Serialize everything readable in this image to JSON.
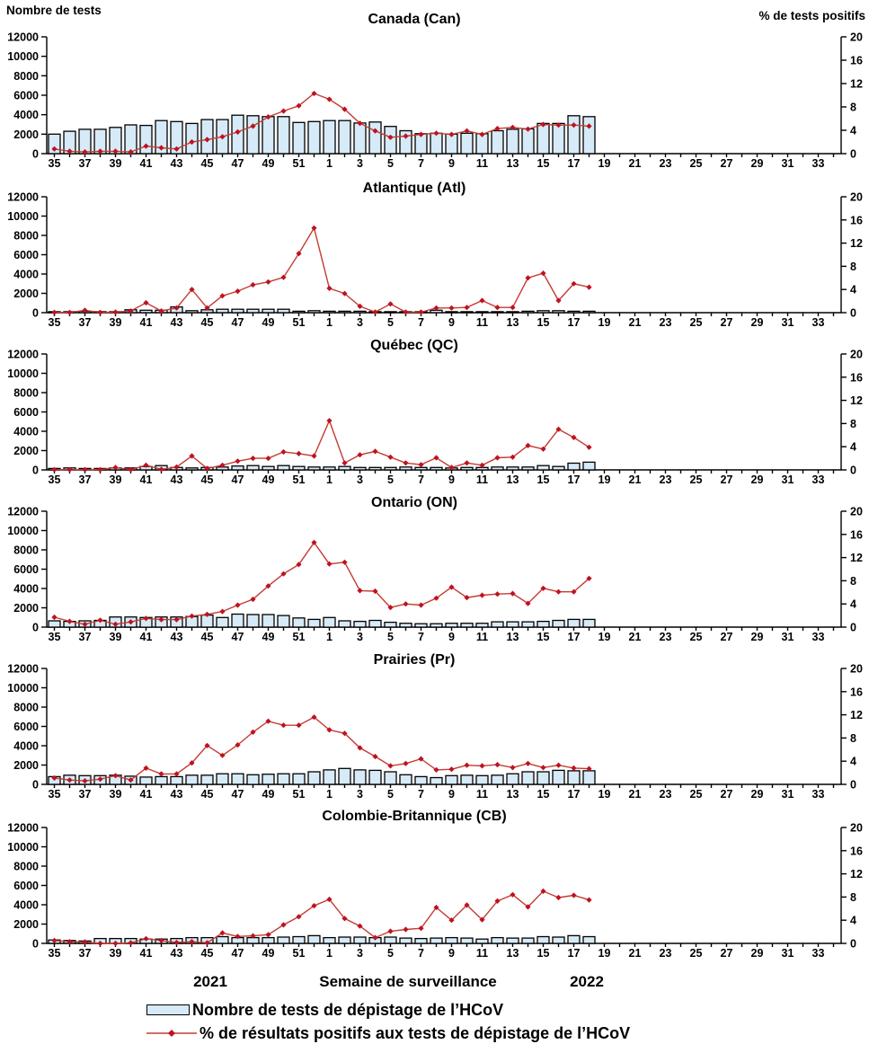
{
  "axes": {
    "left_title": "Nombre de tests",
    "right_title": "% de tests positifs",
    "left_ticks": [
      0,
      2000,
      4000,
      6000,
      8000,
      10000,
      12000
    ],
    "right_ticks": [
      0,
      4,
      8,
      12,
      16,
      20
    ],
    "x_tick_labels": [
      35,
      37,
      39,
      41,
      43,
      45,
      47,
      49,
      51,
      1,
      3,
      5,
      7,
      9,
      11,
      13,
      15,
      17,
      19,
      21,
      23,
      25,
      27,
      29,
      31,
      33
    ]
  },
  "x_axis": {
    "label": "Semaine de surveillance",
    "year_left": "2021",
    "year_right": "2022"
  },
  "legend": {
    "items": [
      {
        "swatch": "bar",
        "label": "Nombre de tests de dépistage de l’HCoV"
      },
      {
        "swatch": "line-diamond",
        "label": "% de résultats positifs aux tests de dépistage de l’HCoV"
      }
    ]
  },
  "colors": {
    "bar_fill": "#D6EAF8",
    "bar_stroke": "#000000",
    "line": "#C53B33",
    "marker": "#BE1220"
  },
  "chart_data": [
    {
      "type": "combo-bar-line",
      "title": "Canada (Can)",
      "xlabel": "Semaine de surveillance",
      "weeks": [
        35,
        36,
        37,
        38,
        39,
        40,
        41,
        42,
        43,
        44,
        45,
        46,
        47,
        48,
        49,
        50,
        51,
        52,
        1,
        2,
        3,
        4,
        5,
        6,
        7,
        8,
        9,
        10,
        11,
        12,
        13,
        14,
        15,
        16,
        17,
        18
      ],
      "ylim_left": [
        0,
        12000
      ],
      "ylim_right": [
        0,
        20
      ],
      "series": [
        {
          "name": "Nombre de tests",
          "type": "bar",
          "axis": "left",
          "values": [
            2000,
            2300,
            2500,
            2500,
            2700,
            2950,
            2900,
            3400,
            3300,
            3100,
            3500,
            3500,
            3950,
            3900,
            3800,
            3800,
            3200,
            3300,
            3400,
            3400,
            3150,
            3250,
            2800,
            2350,
            2050,
            2100,
            2000,
            2100,
            2050,
            2350,
            2500,
            2550,
            3100,
            3100,
            3900,
            3800
          ]
        },
        {
          "name": "% de tests positifs",
          "type": "line",
          "axis": "right",
          "values": [
            0.8,
            0.4,
            0.3,
            0.4,
            0.4,
            0.3,
            1.3,
            1.0,
            0.8,
            2.0,
            2.4,
            2.9,
            3.7,
            4.7,
            6.3,
            7.3,
            8.2,
            10.3,
            9.3,
            7.6,
            5.2,
            3.9,
            2.8,
            3.0,
            3.3,
            3.5,
            3.3,
            3.9,
            3.3,
            4.3,
            4.5,
            4.2,
            5.0,
            4.9,
            4.9,
            4.7
          ]
        }
      ]
    },
    {
      "type": "combo-bar-line",
      "title": "Atlantique (Atl)",
      "xlabel": "Semaine de surveillance",
      "weeks": [
        35,
        36,
        37,
        38,
        39,
        40,
        41,
        42,
        43,
        44,
        45,
        46,
        47,
        48,
        49,
        50,
        51,
        52,
        1,
        2,
        3,
        4,
        5,
        6,
        7,
        8,
        9,
        10,
        11,
        12,
        13,
        14,
        15,
        16,
        17,
        18
      ],
      "ylim_left": [
        0,
        12000
      ],
      "ylim_right": [
        0,
        20
      ],
      "series": [
        {
          "name": "Nombre de tests",
          "type": "bar",
          "axis": "left",
          "values": [
            100,
            100,
            150,
            100,
            100,
            300,
            250,
            250,
            600,
            200,
            300,
            350,
            350,
            350,
            350,
            350,
            150,
            200,
            150,
            150,
            150,
            100,
            100,
            100,
            100,
            250,
            100,
            100,
            100,
            100,
            100,
            150,
            200,
            200,
            150,
            150
          ]
        },
        {
          "name": "% de tests positifs",
          "type": "line",
          "axis": "right",
          "values": [
            0.05,
            0.05,
            0.4,
            0.05,
            0.1,
            0.3,
            1.7,
            0.3,
            0.8,
            4.0,
            0.8,
            2.9,
            3.7,
            4.8,
            5.3,
            6.1,
            10.2,
            14.6,
            4.2,
            3.3,
            1.1,
            0.1,
            1.5,
            0.1,
            0.1,
            0.8,
            0.8,
            0.9,
            2.1,
            0.9,
            0.9,
            6.0,
            6.8,
            2.1,
            5.0,
            4.4
          ]
        }
      ]
    },
    {
      "type": "combo-bar-line",
      "title": "Québec (QC)",
      "xlabel": "Semaine de surveillance",
      "weeks": [
        35,
        36,
        37,
        38,
        39,
        40,
        41,
        42,
        43,
        44,
        45,
        46,
        47,
        48,
        49,
        50,
        51,
        52,
        1,
        2,
        3,
        4,
        5,
        6,
        7,
        8,
        9,
        10,
        11,
        12,
        13,
        14,
        15,
        16,
        17,
        18
      ],
      "ylim_left": [
        0,
        12000
      ],
      "ylim_right": [
        0,
        20
      ],
      "series": [
        {
          "name": "Nombre de tests",
          "type": "bar",
          "axis": "left",
          "values": [
            150,
            200,
            150,
            150,
            200,
            200,
            350,
            450,
            250,
            200,
            250,
            300,
            400,
            450,
            350,
            450,
            350,
            300,
            300,
            350,
            250,
            250,
            250,
            300,
            250,
            250,
            200,
            250,
            250,
            300,
            300,
            300,
            450,
            350,
            700,
            800
          ]
        },
        {
          "name": "% de tests positifs",
          "type": "line",
          "axis": "right",
          "values": [
            0.05,
            0.05,
            0.05,
            0.05,
            0.4,
            0.05,
            0.8,
            0.1,
            0.5,
            2.4,
            0.25,
            0.8,
            1.5,
            2.0,
            2.0,
            3.1,
            2.8,
            2.4,
            8.5,
            1.2,
            2.6,
            3.2,
            2.2,
            1.2,
            0.9,
            2.1,
            0.4,
            1.2,
            0.8,
            2.1,
            2.2,
            4.2,
            3.6,
            7.0,
            5.6,
            3.9
          ]
        }
      ]
    },
    {
      "type": "combo-bar-line",
      "title": "Ontario (ON)",
      "xlabel": "Semaine de surveillance",
      "weeks": [
        35,
        36,
        37,
        38,
        39,
        40,
        41,
        42,
        43,
        44,
        45,
        46,
        47,
        48,
        49,
        50,
        51,
        52,
        1,
        2,
        3,
        4,
        5,
        6,
        7,
        8,
        9,
        10,
        11,
        12,
        13,
        14,
        15,
        16,
        17,
        18
      ],
      "ylim_left": [
        0,
        12000
      ],
      "ylim_right": [
        0,
        20
      ],
      "series": [
        {
          "name": "Nombre de tests",
          "type": "bar",
          "axis": "left",
          "values": [
            650,
            600,
            650,
            700,
            1050,
            1050,
            1000,
            1050,
            1050,
            1100,
            1250,
            1000,
            1350,
            1300,
            1300,
            1200,
            950,
            800,
            1000,
            650,
            600,
            700,
            500,
            400,
            350,
            350,
            400,
            400,
            400,
            550,
            550,
            550,
            600,
            700,
            800,
            800
          ]
        },
        {
          "name": "% de tests positifs",
          "type": "line",
          "axis": "right",
          "values": [
            1.7,
            1.0,
            0.5,
            1.2,
            0.5,
            0.9,
            1.5,
            1.3,
            1.3,
            1.9,
            2.2,
            2.7,
            3.8,
            4.8,
            7.1,
            9.2,
            10.8,
            14.6,
            10.9,
            11.2,
            6.3,
            6.2,
            3.4,
            4.0,
            3.8,
            5.0,
            6.9,
            5.1,
            5.5,
            5.7,
            5.8,
            4.1,
            6.7,
            6.1,
            6.1,
            8.4
          ]
        }
      ]
    },
    {
      "type": "combo-bar-line",
      "title": "Prairies (Pr)",
      "xlabel": "Semaine de surveillance",
      "weeks": [
        35,
        36,
        37,
        38,
        39,
        40,
        41,
        42,
        43,
        44,
        45,
        46,
        47,
        48,
        49,
        50,
        51,
        52,
        1,
        2,
        3,
        4,
        5,
        6,
        7,
        8,
        9,
        10,
        11,
        12,
        13,
        14,
        15,
        16,
        17,
        18
      ],
      "ylim_left": [
        0,
        12000
      ],
      "ylim_right": [
        0,
        20
      ],
      "series": [
        {
          "name": "Nombre de tests",
          "type": "bar",
          "axis": "left",
          "values": [
            800,
            950,
            900,
            900,
            950,
            850,
            750,
            800,
            800,
            950,
            950,
            1100,
            1100,
            1000,
            1050,
            1100,
            1100,
            1300,
            1500,
            1650,
            1500,
            1450,
            1300,
            1000,
            800,
            700,
            900,
            950,
            900,
            950,
            1100,
            1300,
            1300,
            1450,
            1400,
            1400
          ]
        },
        {
          "name": "% de tests positifs",
          "type": "line",
          "axis": "right",
          "values": [
            1.1,
            0.75,
            0.6,
            0.9,
            1.5,
            0.75,
            2.8,
            1.8,
            1.8,
            3.7,
            6.7,
            5.0,
            6.8,
            9.0,
            10.9,
            10.2,
            10.2,
            11.6,
            9.4,
            8.8,
            6.3,
            4.8,
            3.2,
            3.6,
            4.4,
            2.5,
            2.6,
            3.3,
            3.2,
            3.4,
            2.9,
            3.6,
            2.9,
            3.3,
            2.8,
            2.7
          ]
        }
      ]
    },
    {
      "type": "combo-bar-line",
      "title": "Colombie-Britannique (CB)",
      "xlabel": "Semaine de surveillance",
      "weeks": [
        35,
        36,
        37,
        38,
        39,
        40,
        41,
        42,
        43,
        44,
        45,
        46,
        47,
        48,
        49,
        50,
        51,
        52,
        1,
        2,
        3,
        4,
        5,
        6,
        7,
        8,
        9,
        10,
        11,
        12,
        13,
        14,
        15,
        16,
        17,
        18
      ],
      "ylim_left": [
        0,
        12000
      ],
      "ylim_right": [
        0,
        20
      ],
      "series": [
        {
          "name": "Nombre de tests",
          "type": "bar",
          "axis": "left",
          "values": [
            350,
            300,
            250,
            500,
            500,
            500,
            450,
            450,
            500,
            600,
            600,
            700,
            600,
            600,
            600,
            650,
            700,
            800,
            600,
            650,
            650,
            600,
            650,
            550,
            500,
            550,
            600,
            550,
            450,
            600,
            550,
            550,
            700,
            650,
            800,
            700
          ]
        },
        {
          "name": "% de tests positifs",
          "type": "line",
          "axis": "right",
          "values": [
            0.5,
            0.3,
            0.25,
            0.0,
            0.0,
            0.1,
            0.8,
            0.5,
            0.15,
            0.3,
            0.1,
            1.8,
            1.2,
            1.3,
            1.5,
            3.2,
            4.6,
            6.5,
            7.6,
            4.3,
            3.0,
            1.0,
            2.1,
            2.4,
            2.6,
            6.2,
            4.0,
            6.6,
            4.1,
            7.3,
            8.4,
            6.3,
            9.0,
            7.9,
            8.3,
            7.5
          ]
        }
      ]
    }
  ]
}
